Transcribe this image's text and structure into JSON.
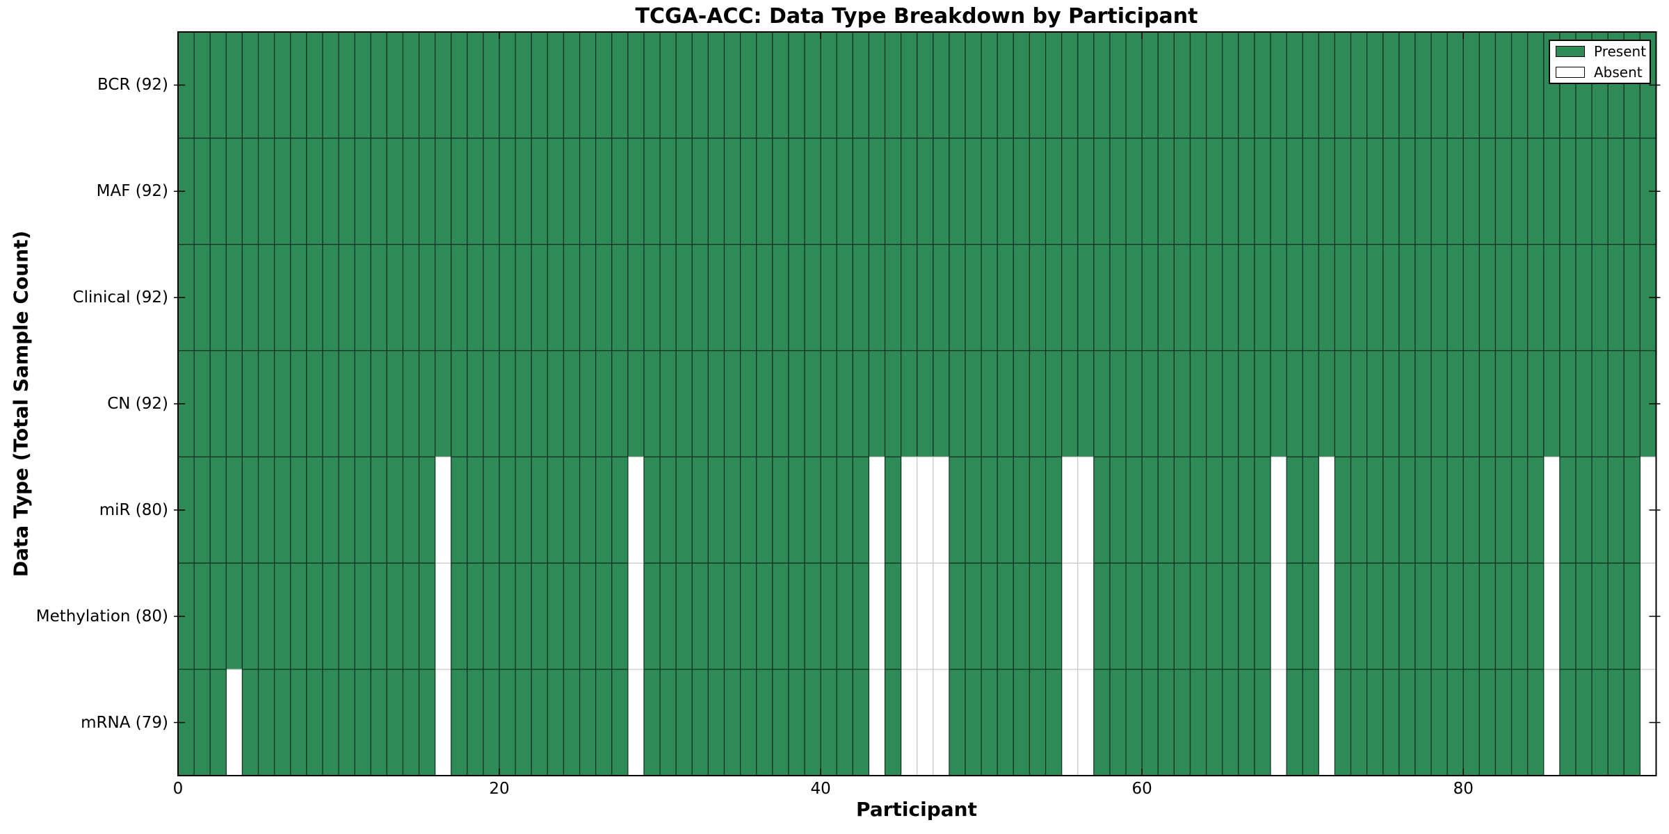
{
  "chart_data": {
    "type": "heatmap",
    "title": "TCGA-ACC: Data Type Breakdown by Participant",
    "xlabel": "Participant",
    "ylabel": "Data Type (Total Sample Count)",
    "x_ticks": [
      0,
      20,
      40,
      60,
      80
    ],
    "x_range": [
      0,
      92
    ],
    "n_participants": 92,
    "rows": [
      {
        "label": "BCR (92)",
        "data_type": "BCR",
        "present_count": 92,
        "absent_participants": []
      },
      {
        "label": "MAF (92)",
        "data_type": "MAF",
        "present_count": 92,
        "absent_participants": []
      },
      {
        "label": "Clinical (92)",
        "data_type": "Clinical",
        "present_count": 92,
        "absent_participants": []
      },
      {
        "label": "CN (92)",
        "data_type": "CN",
        "present_count": 92,
        "absent_participants": []
      },
      {
        "label": "miR (80)",
        "data_type": "miR",
        "present_count": 80,
        "absent_participants": [
          16,
          28,
          43,
          45,
          46,
          47,
          55,
          56,
          68,
          71,
          85,
          91
        ]
      },
      {
        "label": "Methylation (80)",
        "data_type": "Methylation",
        "present_count": 80,
        "absent_participants": [
          16,
          28,
          43,
          45,
          46,
          47,
          55,
          56,
          68,
          71,
          85,
          91
        ]
      },
      {
        "label": "mRNA (79)",
        "data_type": "mRNA",
        "present_count": 79,
        "absent_participants": [
          3,
          16,
          28,
          43,
          45,
          46,
          47,
          55,
          56,
          68,
          71,
          85,
          91
        ]
      }
    ],
    "legend": [
      {
        "label": "Present",
        "color": "#2e8b57"
      },
      {
        "label": "Absent",
        "color": "#ffffff"
      }
    ],
    "legend_position": "upper right",
    "grid": false,
    "colors": {
      "present": "#2e8b57",
      "absent": "#ffffff",
      "present_edge": "#12301f",
      "absent_edge": "#c8c8c8",
      "axis": "#000000",
      "background": "#ffffff",
      "text": "#000000"
    }
  }
}
